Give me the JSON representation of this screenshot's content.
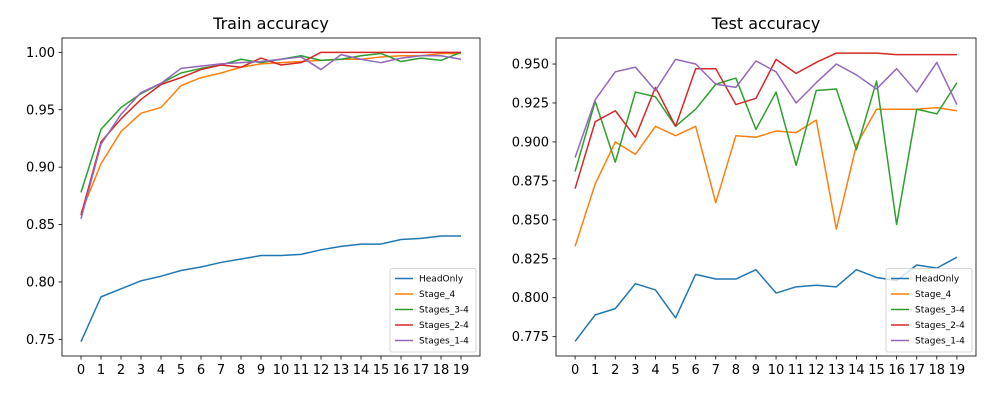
{
  "chart_data": [
    {
      "type": "line",
      "title": "Train accuracy",
      "xlabel": "",
      "ylabel": "",
      "x": [
        0,
        1,
        2,
        3,
        4,
        5,
        6,
        7,
        8,
        9,
        10,
        11,
        12,
        13,
        14,
        15,
        16,
        17,
        18,
        19
      ],
      "xlim": [
        -0.95,
        19.95
      ],
      "ylim": [
        0.7355,
        1.0125
      ],
      "yticks": [
        "0.75",
        "0.80",
        "0.85",
        "0.90",
        "0.95",
        "1.00"
      ],
      "ytick_values": [
        0.75,
        0.8,
        0.85,
        0.9,
        0.95,
        1.0
      ],
      "grid": false,
      "legend": "lower-right",
      "series": [
        {
          "name": "HeadOnly",
          "color": "#1f77b4",
          "values": [
            0.748,
            0.787,
            0.794,
            0.801,
            0.805,
            0.81,
            0.813,
            0.817,
            0.82,
            0.823,
            0.823,
            0.824,
            0.828,
            0.831,
            0.833,
            0.833,
            0.837,
            0.838,
            0.84,
            0.84
          ]
        },
        {
          "name": "Stage_4",
          "color": "#ff7f0e",
          "values": [
            0.86,
            0.903,
            0.931,
            0.947,
            0.952,
            0.971,
            0.978,
            0.982,
            0.987,
            0.99,
            0.991,
            0.992,
            0.993,
            0.994,
            0.994,
            0.996,
            0.997,
            0.997,
            0.999,
            0.999
          ]
        },
        {
          "name": "Stages_3-4",
          "color": "#2ca02c",
          "values": [
            0.878,
            0.933,
            0.952,
            0.964,
            0.973,
            0.982,
            0.986,
            0.989,
            0.994,
            0.991,
            0.994,
            0.997,
            0.993,
            0.994,
            0.997,
            0.999,
            0.992,
            0.995,
            0.993,
            1.0
          ]
        },
        {
          "name": "Stages_2-4",
          "color": "#d62728",
          "values": [
            0.858,
            0.922,
            0.942,
            0.959,
            0.972,
            0.978,
            0.985,
            0.989,
            0.987,
            0.995,
            0.989,
            0.991,
            1.0,
            1.0,
            1.0,
            1.0,
            1.0,
            1.0,
            1.0,
            1.0
          ]
        },
        {
          "name": "Stages_1-4",
          "color": "#9467bd",
          "values": [
            0.855,
            0.92,
            0.946,
            0.965,
            0.973,
            0.986,
            0.988,
            0.99,
            0.991,
            0.992,
            0.994,
            0.996,
            0.985,
            0.998,
            0.994,
            0.991,
            0.995,
            0.997,
            0.997,
            0.994
          ]
        }
      ],
      "xticks": [
        "0",
        "1",
        "2",
        "3",
        "4",
        "5",
        "6",
        "7",
        "8",
        "9",
        "10",
        "11",
        "12",
        "13",
        "14",
        "15",
        "16",
        "17",
        "18",
        "19"
      ]
    },
    {
      "type": "line",
      "title": "Test accuracy",
      "xlabel": "",
      "ylabel": "",
      "x": [
        0,
        1,
        2,
        3,
        4,
        5,
        6,
        7,
        8,
        9,
        10,
        11,
        12,
        13,
        14,
        15,
        16,
        17,
        18,
        19
      ],
      "xlim": [
        -0.95,
        19.95
      ],
      "ylim": [
        0.7626,
        0.9667
      ],
      "yticks": [
        "0.775",
        "0.800",
        "0.825",
        "0.850",
        "0.875",
        "0.900",
        "0.925",
        "0.950"
      ],
      "ytick_values": [
        0.775,
        0.8,
        0.825,
        0.85,
        0.875,
        0.9,
        0.925,
        0.95
      ],
      "grid": false,
      "legend": "lower-right",
      "series": [
        {
          "name": "HeadOnly",
          "color": "#1f77b4",
          "values": [
            0.772,
            0.789,
            0.793,
            0.809,
            0.805,
            0.787,
            0.815,
            0.812,
            0.812,
            0.818,
            0.803,
            0.807,
            0.808,
            0.807,
            0.818,
            0.813,
            0.811,
            0.821,
            0.819,
            0.826
          ]
        },
        {
          "name": "Stage_4",
          "color": "#ff7f0e",
          "values": [
            0.833,
            0.873,
            0.9,
            0.892,
            0.91,
            0.904,
            0.91,
            0.861,
            0.904,
            0.903,
            0.907,
            0.906,
            0.914,
            0.844,
            0.898,
            0.921,
            0.921,
            0.921,
            0.922,
            0.92
          ]
        },
        {
          "name": "Stages_3-4",
          "color": "#2ca02c",
          "values": [
            0.881,
            0.926,
            0.887,
            0.932,
            0.929,
            0.91,
            0.921,
            0.937,
            0.941,
            0.908,
            0.932,
            0.885,
            0.933,
            0.934,
            0.895,
            0.939,
            0.847,
            0.921,
            0.918,
            0.938
          ]
        },
        {
          "name": "Stages_2-4",
          "color": "#d62728",
          "values": [
            0.87,
            0.913,
            0.92,
            0.903,
            0.935,
            0.91,
            0.947,
            0.947,
            0.924,
            0.928,
            0.953,
            0.944,
            0.951,
            0.957,
            0.957,
            0.957,
            0.956,
            0.956,
            0.956,
            0.956
          ]
        },
        {
          "name": "Stages_1-4",
          "color": "#9467bd",
          "values": [
            0.89,
            0.927,
            0.945,
            0.948,
            0.933,
            0.953,
            0.95,
            0.937,
            0.935,
            0.952,
            0.945,
            0.925,
            0.938,
            0.95,
            0.943,
            0.934,
            0.947,
            0.932,
            0.951,
            0.924
          ]
        }
      ],
      "xticks": [
        "0",
        "1",
        "2",
        "3",
        "4",
        "5",
        "6",
        "7",
        "8",
        "9",
        "10",
        "11",
        "12",
        "13",
        "14",
        "15",
        "16",
        "17",
        "18",
        "19"
      ]
    }
  ]
}
